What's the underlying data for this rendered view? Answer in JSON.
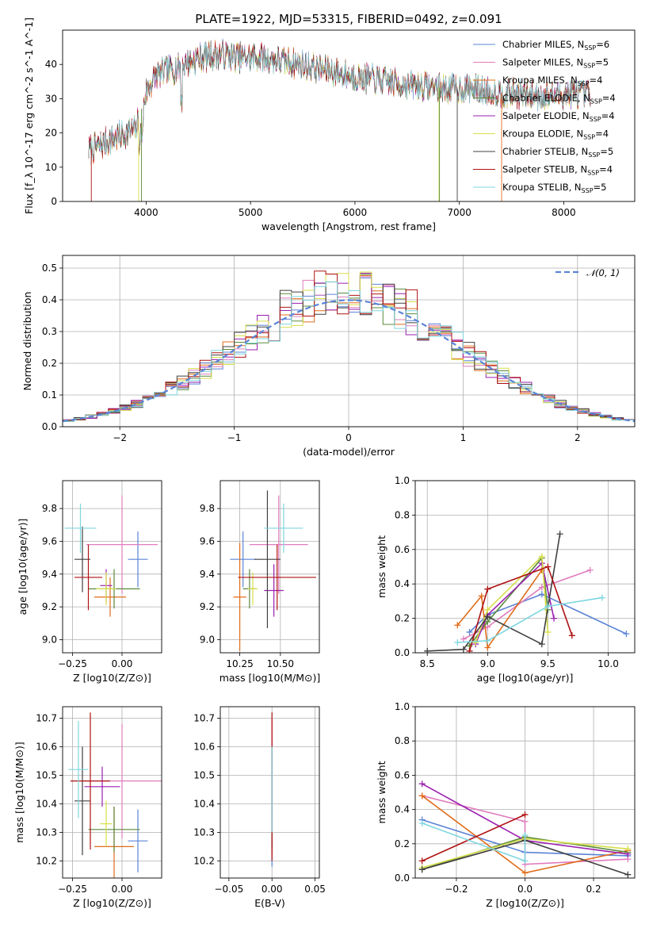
{
  "title": "PLATE=1922, MJD=53315, FIBERID=0492, z=0.091",
  "models": [
    {
      "name": "Chabrier MILES",
      "nssp": "6",
      "color": "#5b84d6"
    },
    {
      "name": "Salpeter MILES",
      "nssp": "5",
      "color": "#e07cbd"
    },
    {
      "name": "Kroupa MILES",
      "nssp": "4",
      "color": "#e06c1a"
    },
    {
      "name": "Chabrier ELODIE",
      "nssp": "4",
      "color": "#5a8a3c"
    },
    {
      "name": "Salpeter ELODIE",
      "nssp": "4",
      "color": "#9a1fb0"
    },
    {
      "name": "Kroupa ELODIE",
      "nssp": "4",
      "color": "#d7de4a"
    },
    {
      "name": "Chabrier STELIB",
      "nssp": "5",
      "color": "#404040"
    },
    {
      "name": "Salpeter STELIB",
      "nssp": "4",
      "color": "#b01212"
    },
    {
      "name": "Kroupa STELIB",
      "nssp": "5",
      "color": "#7fd6e0"
    }
  ],
  "chart_data": [
    {
      "id": "spectrum",
      "type": "line",
      "xlabel": "wavelength [Angstrom, rest frame]",
      "ylabel": "Flux [f_λ 10^-17 erg cm^-2 s^-1 A^-1]",
      "xlim": [
        3200,
        8680
      ],
      "ylim": [
        0,
        50
      ],
      "xticks": [
        4000,
        5000,
        6000,
        7000,
        8000
      ],
      "yticks": [
        0,
        10,
        20,
        30,
        40
      ],
      "x_range": [
        3450,
        8260
      ],
      "continuum_x": [
        3450,
        3600,
        3800,
        3900,
        4000,
        4100,
        4300,
        4500,
        4700,
        4900,
        5100,
        5300,
        5500,
        5700,
        5900,
        6100,
        6300,
        6500,
        6700,
        6900,
        7100,
        7300,
        7500,
        7700,
        7900,
        8100,
        8260
      ],
      "continuum_y": [
        15,
        17,
        20,
        21,
        32,
        37,
        39,
        42,
        43,
        42,
        42,
        41,
        40,
        38.5,
        37,
        36,
        35,
        34,
        33.5,
        33,
        33,
        32,
        31.5,
        31,
        31,
        31.5,
        31
      ],
      "legend": "top-right"
    },
    {
      "id": "residuals",
      "type": "histogram",
      "xlabel": "(data-model)/error",
      "ylabel": "Normed distribution",
      "xlim": [
        -2.5,
        2.5
      ],
      "ylim": [
        0,
        0.54
      ],
      "xticks": [
        -2,
        -1,
        0,
        1,
        2
      ],
      "yticks": [
        0.0,
        0.1,
        0.2,
        0.3,
        0.4,
        0.5
      ],
      "bin_width": 0.1,
      "gaussian_label": "𝒩(0, 1)",
      "gaussian_color": "#5b84d6",
      "legend": "top-right"
    },
    {
      "id": "age-vs-Z",
      "type": "scatter",
      "xlabel": "Z [log10(Z/Z⊙)]",
      "ylabel": "age [log10(age/yr)]",
      "xlim": [
        -0.3,
        0.2
      ],
      "ylim": [
        8.92,
        9.97
      ],
      "xticks": [
        -0.25,
        0.0
      ],
      "yticks": [
        9.0,
        9.2,
        9.4,
        9.6,
        9.8
      ],
      "points": [
        {
          "x": 0.08,
          "y": 9.49,
          "xerr": 0.05,
          "yerr": 0.17
        },
        {
          "x": 0.0,
          "y": 9.58,
          "xerr": 0.18,
          "yerr": 0.3
        },
        {
          "x": -0.06,
          "y": 9.26,
          "xerr": 0.08,
          "yerr": 0.12
        },
        {
          "x": -0.04,
          "y": 9.31,
          "xerr": 0.13,
          "yerr": 0.12
        },
        {
          "x": -0.08,
          "y": 9.33,
          "xerr": 0.03,
          "yerr": 0.1
        },
        {
          "x": -0.08,
          "y": 9.31,
          "xerr": 0.05,
          "yerr": 0.1
        },
        {
          "x": -0.2,
          "y": 9.49,
          "xerr": 0.04,
          "yerr": 0.2
        },
        {
          "x": -0.17,
          "y": 9.38,
          "xerr": 0.07,
          "yerr": 0.2
        },
        {
          "x": -0.21,
          "y": 9.68,
          "xerr": 0.08,
          "yerr": 0.15
        }
      ]
    },
    {
      "id": "age-vs-mass",
      "type": "scatter",
      "xlabel": "mass [log10(M/M⊙)]",
      "ylabel": "",
      "xlim": [
        10.13,
        10.74
      ],
      "ylim": [
        8.92,
        9.97
      ],
      "xticks": [
        10.25,
        10.5
      ],
      "yticks": [
        9.0,
        9.2,
        9.4,
        9.6,
        9.8
      ],
      "points": [
        {
          "x": 10.27,
          "y": 9.49,
          "xerr": 0.08,
          "yerr": 0.17
        },
        {
          "x": 10.49,
          "y": 9.58,
          "xerr": 0.18,
          "yerr": 0.3
        },
        {
          "x": 10.25,
          "y": 9.26,
          "xerr": 0.04,
          "yerr": 0.33
        },
        {
          "x": 10.31,
          "y": 9.31,
          "xerr": 0.04,
          "yerr": 0.12
        },
        {
          "x": 10.46,
          "y": 9.3,
          "xerr": 0.06,
          "yerr": 0.16
        },
        {
          "x": 10.33,
          "y": 9.31,
          "xerr": 0.03,
          "yerr": 0.1
        },
        {
          "x": 10.42,
          "y": 9.49,
          "xerr": 0.08,
          "yerr": 0.42
        },
        {
          "x": 10.48,
          "y": 9.38,
          "xerr": 0.24,
          "yerr": 0.2
        },
        {
          "x": 10.52,
          "y": 9.68,
          "xerr": 0.12,
          "yerr": 0.15
        }
      ]
    },
    {
      "id": "weight-vs-age",
      "type": "line",
      "xlabel": "age [log10(age/yr)]",
      "ylabel": "mass weight",
      "xlim": [
        8.4,
        10.22
      ],
      "ylim": [
        0,
        1
      ],
      "xticks": [
        8.5,
        9.0,
        9.5,
        10.0
      ],
      "yticks": [
        0.0,
        0.2,
        0.4,
        0.6,
        0.8,
        1.0
      ],
      "series": [
        {
          "x": [
            8.85,
            9.0,
            9.45,
            10.15
          ],
          "y": [
            0.12,
            0.22,
            0.34,
            0.11
          ]
        },
        {
          "x": [
            8.8,
            9.0,
            9.45,
            9.85
          ],
          "y": [
            0.08,
            0.15,
            0.38,
            0.48
          ]
        },
        {
          "x": [
            8.75,
            8.95,
            9.0,
            9.45
          ],
          "y": [
            0.16,
            0.33,
            0.03,
            0.48
          ]
        },
        {
          "x": [
            8.85,
            9.0,
            9.45,
            9.5
          ],
          "y": [
            0.04,
            0.18,
            0.55,
            0.25
          ]
        },
        {
          "x": [
            8.9,
            9.0,
            9.45,
            9.55
          ],
          "y": [
            0.05,
            0.22,
            0.52,
            0.2
          ]
        },
        {
          "x": [
            8.9,
            9.0,
            9.45,
            9.5
          ],
          "y": [
            0.06,
            0.25,
            0.56,
            0.12
          ]
        },
        {
          "x": [
            8.5,
            8.8,
            9.0,
            9.45,
            9.6
          ],
          "y": [
            0.01,
            0.02,
            0.21,
            0.05,
            0.69
          ]
        },
        {
          "x": [
            8.85,
            9.0,
            9.5,
            9.7
          ],
          "y": [
            0.01,
            0.37,
            0.5,
            0.1
          ]
        },
        {
          "x": [
            8.75,
            9.0,
            9.5,
            9.95
          ],
          "y": [
            0.06,
            0.07,
            0.27,
            0.32
          ]
        }
      ]
    },
    {
      "id": "mass-vs-Z",
      "type": "scatter",
      "xlabel": "Z [log10(Z/Z⊙)]",
      "ylabel": "mass [log10(M/M⊙)]",
      "xlim": [
        -0.3,
        0.2
      ],
      "ylim": [
        10.14,
        10.74
      ],
      "xticks": [
        -0.25,
        0.0
      ],
      "yticks": [
        10.2,
        10.3,
        10.4,
        10.5,
        10.6,
        10.7
      ],
      "points": [
        {
          "x": 0.08,
          "y": 10.27,
          "xerr": 0.05,
          "yerr": 0.11
        },
        {
          "x": 0.0,
          "y": 10.48,
          "xerr": 0.2,
          "yerr": 0.2
        },
        {
          "x": -0.04,
          "y": 10.25,
          "xerr": 0.1,
          "yerr": 0.14
        },
        {
          "x": -0.04,
          "y": 10.31,
          "xerr": 0.13,
          "yerr": 0.08
        },
        {
          "x": -0.1,
          "y": 10.46,
          "xerr": 0.09,
          "yerr": 0.07
        },
        {
          "x": -0.08,
          "y": 10.33,
          "xerr": 0.03,
          "yerr": 0.08
        },
        {
          "x": -0.2,
          "y": 10.41,
          "xerr": 0.04,
          "yerr": 0.19
        },
        {
          "x": -0.16,
          "y": 10.48,
          "xerr": 0.1,
          "yerr": 0.24
        },
        {
          "x": -0.22,
          "y": 10.52,
          "xerr": 0.05,
          "yerr": 0.17
        }
      ]
    },
    {
      "id": "mass-vs-ebv",
      "type": "scatter",
      "xlabel": "E(B-V)",
      "ylabel": "",
      "xlim": [
        -0.06,
        0.055
      ],
      "ylim": [
        10.14,
        10.74
      ],
      "xticks": [
        -0.05,
        0.0,
        0.05
      ],
      "yticks": [
        10.2,
        10.3,
        10.4,
        10.5,
        10.6,
        10.7
      ],
      "points": [
        {
          "x": 0.0,
          "y": 10.4,
          "xerr": 0.0,
          "yerr": 0.22
        },
        {
          "x": 0.0,
          "y": 10.48,
          "xerr": 0.0,
          "yerr": 0.22
        },
        {
          "x": 0.0,
          "y": 10.3,
          "xerr": 0.0,
          "yerr": 0.08
        },
        {
          "x": 0.0,
          "y": 10.45,
          "xerr": 0.0,
          "yerr": 0.15
        },
        {
          "x": 0.0,
          "y": 10.4,
          "xerr": 0.0,
          "yerr": 0.1
        },
        {
          "x": 0.0,
          "y": 10.3,
          "xerr": 0.0,
          "yerr": 0.04
        },
        {
          "x": 0.0,
          "y": 10.42,
          "xerr": 0.0,
          "yerr": 0.18
        },
        {
          "x": 0.0,
          "y": 10.46,
          "xerr": 0.0,
          "yerr": 0.26
        },
        {
          "x": 0.0,
          "y": 10.45,
          "xerr": 0.0,
          "yerr": 0.15
        }
      ]
    },
    {
      "id": "weight-vs-Z",
      "type": "line",
      "xlabel": "Z [log10(Z/Z⊙)]",
      "ylabel": "mass weight",
      "xlim": [
        -0.32,
        0.32
      ],
      "ylim": [
        0,
        1
      ],
      "xticks": [
        -0.2,
        0.0,
        0.2
      ],
      "yticks": [
        0.0,
        0.2,
        0.4,
        0.6,
        0.8,
        1.0
      ],
      "series": [
        {
          "x": [
            -0.3,
            0.0,
            0.3
          ],
          "y": [
            0.34,
            0.15,
            0.13
          ]
        },
        {
          "x": [
            -0.3,
            0.0,
            0.0,
            0.3
          ],
          "y": [
            0.48,
            0.33,
            0.08,
            0.11
          ]
        },
        {
          "x": [
            -0.3,
            0.0,
            0.3
          ],
          "y": [
            0.48,
            0.03,
            0.16
          ]
        },
        {
          "x": [
            -0.3,
            0.0,
            0.3
          ],
          "y": [
            0.05,
            0.24,
            0.15
          ]
        },
        {
          "x": [
            -0.3,
            0.0,
            0.3
          ],
          "y": [
            0.55,
            0.22,
            0.14
          ]
        },
        {
          "x": [
            -0.3,
            0.0,
            0.3
          ],
          "y": [
            0.06,
            0.23,
            0.17
          ]
        },
        {
          "x": [
            -0.3,
            0.0,
            0.3
          ],
          "y": [
            0.05,
            0.22,
            0.02
          ]
        },
        {
          "x": [
            -0.3,
            0.0
          ],
          "y": [
            0.1,
            0.37
          ]
        },
        {
          "x": [
            -0.3,
            0.0,
            0.0
          ],
          "y": [
            0.32,
            0.1,
            0.25
          ]
        }
      ]
    }
  ]
}
